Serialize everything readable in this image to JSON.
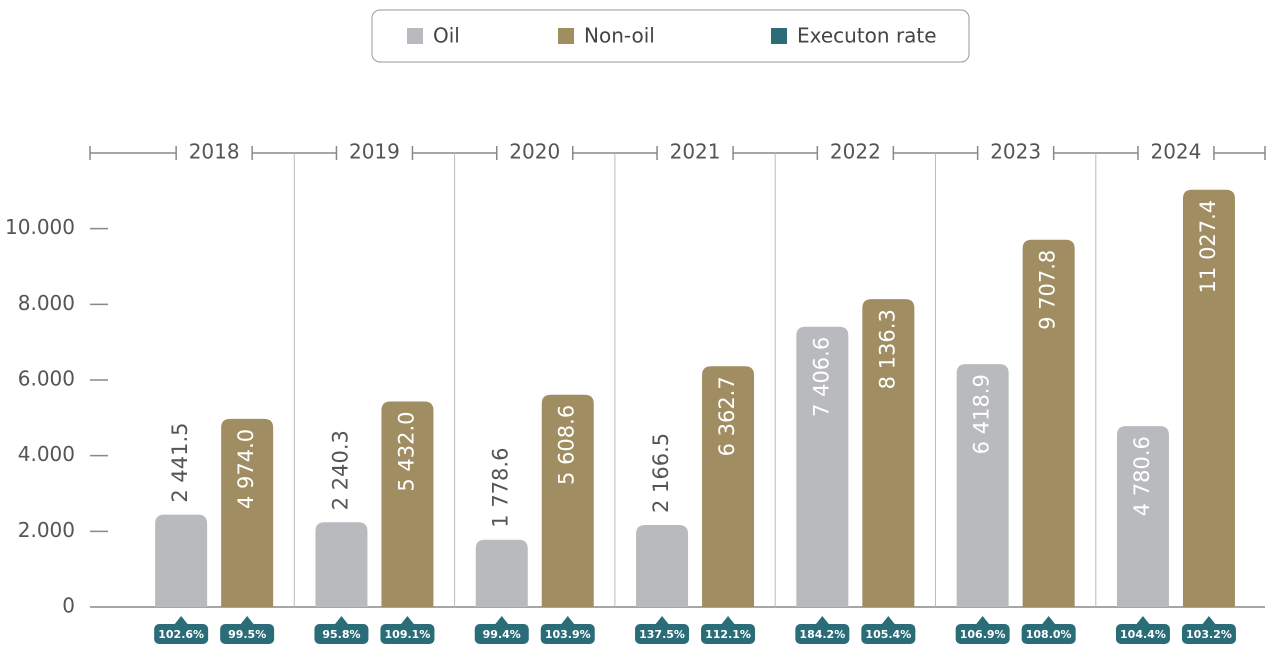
{
  "chart_data": {
    "type": "bar",
    "categories": [
      "2018",
      "2019",
      "2020",
      "2021",
      "2022",
      "2023",
      "2024"
    ],
    "series": [
      {
        "name": "Oil",
        "color": "#b9babe",
        "values": [
          2441.5,
          2240.3,
          1778.6,
          2166.5,
          7406.6,
          6418.9,
          4780.6
        ],
        "value_labels": [
          "2 441.5",
          "2 240.3",
          "1 778.6",
          "2 166.5",
          "7 406.6",
          "6 418.9",
          "4 780.6"
        ]
      },
      {
        "name": "Non-oil",
        "color": "#a08d62",
        "values": [
          4974.0,
          5432.0,
          5608.6,
          6362.7,
          8136.3,
          9707.8,
          11027.4
        ],
        "value_labels": [
          "4 974.0",
          "5 432.0",
          "5 608.6",
          "6 362.7",
          "8 136.3",
          "9 707.8",
          "11 027.4"
        ]
      },
      {
        "name": "Executon rate",
        "color": "#2b6c79",
        "values": [
          [
            102.6,
            95.8,
            99.4,
            137.5,
            184.2,
            106.9,
            104.4
          ],
          [
            99.5,
            109.1,
            103.9,
            112.1,
            105.4,
            108.0,
            103.2
          ]
        ],
        "value_labels": [
          [
            "102.6%",
            "95.8%",
            "99.4%",
            "137.5%",
            "184.2%",
            "106.9%",
            "104.4%"
          ],
          [
            "99.5%",
            "109.1%",
            "103.9%",
            "112.1%",
            "105.4%",
            "108.0%",
            "103.2%"
          ]
        ]
      }
    ],
    "ylim": [
      0,
      12000
    ],
    "yticks": [
      0,
      {
        "value": 2000,
        "label": "2.000"
      },
      {
        "value": 4000,
        "label": "4.000"
      },
      {
        "value": 6000,
        "label": "6.000"
      },
      {
        "value": 8000,
        "label": "8.000"
      },
      {
        "value": 10000,
        "label": "10.000"
      }
    ],
    "legend": "top"
  }
}
